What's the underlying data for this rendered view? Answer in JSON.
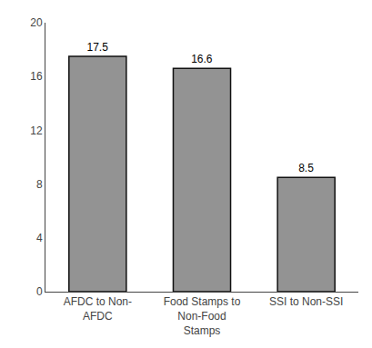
{
  "chart_data": {
    "type": "bar",
    "categories": [
      "AFDC to Non-\nAFDC",
      "Food Stamps to\nNon-Food\nStamps",
      "SSI to Non-SSI"
    ],
    "values": [
      17.5,
      16.6,
      8.5
    ],
    "color": "#939393",
    "ylim": [
      0,
      20
    ],
    "yticks": [
      0,
      4,
      8,
      12,
      16,
      20
    ],
    "data_labels": true,
    "grid": false
  }
}
